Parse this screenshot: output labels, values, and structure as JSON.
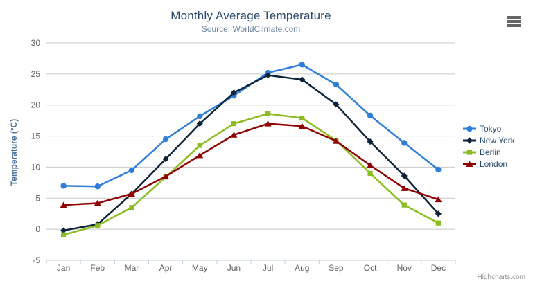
{
  "chart_data": {
    "type": "line",
    "title": "Monthly Average Temperature",
    "subtitle": "Source: WorldClimate.com",
    "categories": [
      "Jan",
      "Feb",
      "Mar",
      "Apr",
      "May",
      "Jun",
      "Jul",
      "Aug",
      "Sep",
      "Oct",
      "Nov",
      "Dec"
    ],
    "xlabel": "",
    "ylabel": "Temperature (°C)",
    "ylim": [
      -5,
      30
    ],
    "yticks": [
      -5,
      0,
      5,
      10,
      15,
      20,
      25,
      30
    ],
    "grid": "horizontal-only",
    "legend_position": "right",
    "series": [
      {
        "name": "Tokyo",
        "marker": "circle",
        "color": "#2f7ed8",
        "values": [
          7.0,
          6.9,
          9.5,
          14.5,
          18.2,
          21.5,
          25.2,
          26.5,
          23.3,
          18.3,
          13.9,
          9.6
        ]
      },
      {
        "name": "New York",
        "marker": "diamond",
        "color": "#0d233a",
        "values": [
          -0.2,
          0.8,
          5.7,
          11.3,
          17.0,
          22.0,
          24.8,
          24.1,
          20.1,
          14.1,
          8.6,
          2.5
        ]
      },
      {
        "name": "Berlin",
        "marker": "square",
        "color": "#8bbc21",
        "values": [
          -0.9,
          0.6,
          3.5,
          8.4,
          13.5,
          17.0,
          18.6,
          17.9,
          14.3,
          9.0,
          3.9,
          1.0
        ]
      },
      {
        "name": "London",
        "marker": "triangle",
        "color": "#910000",
        "values": [
          3.9,
          4.2,
          5.7,
          8.5,
          11.9,
          15.2,
          17.0,
          16.6,
          14.2,
          10.3,
          6.6,
          4.8
        ]
      }
    ],
    "colors": {
      "title": "#274b6d",
      "subtitle": "#6d869f",
      "axis_title": "#4d759e",
      "tick_label": "#606060",
      "grid_line": "#c8c8c8",
      "axis_line": "#c0d0e0",
      "legend_text": "#274b6d",
      "menu_icon": "#666666",
      "credits_text": "#909090"
    }
  },
  "menu_button": {
    "icon": "hamburger-icon"
  },
  "credits": {
    "label": "Highcharts.com"
  }
}
